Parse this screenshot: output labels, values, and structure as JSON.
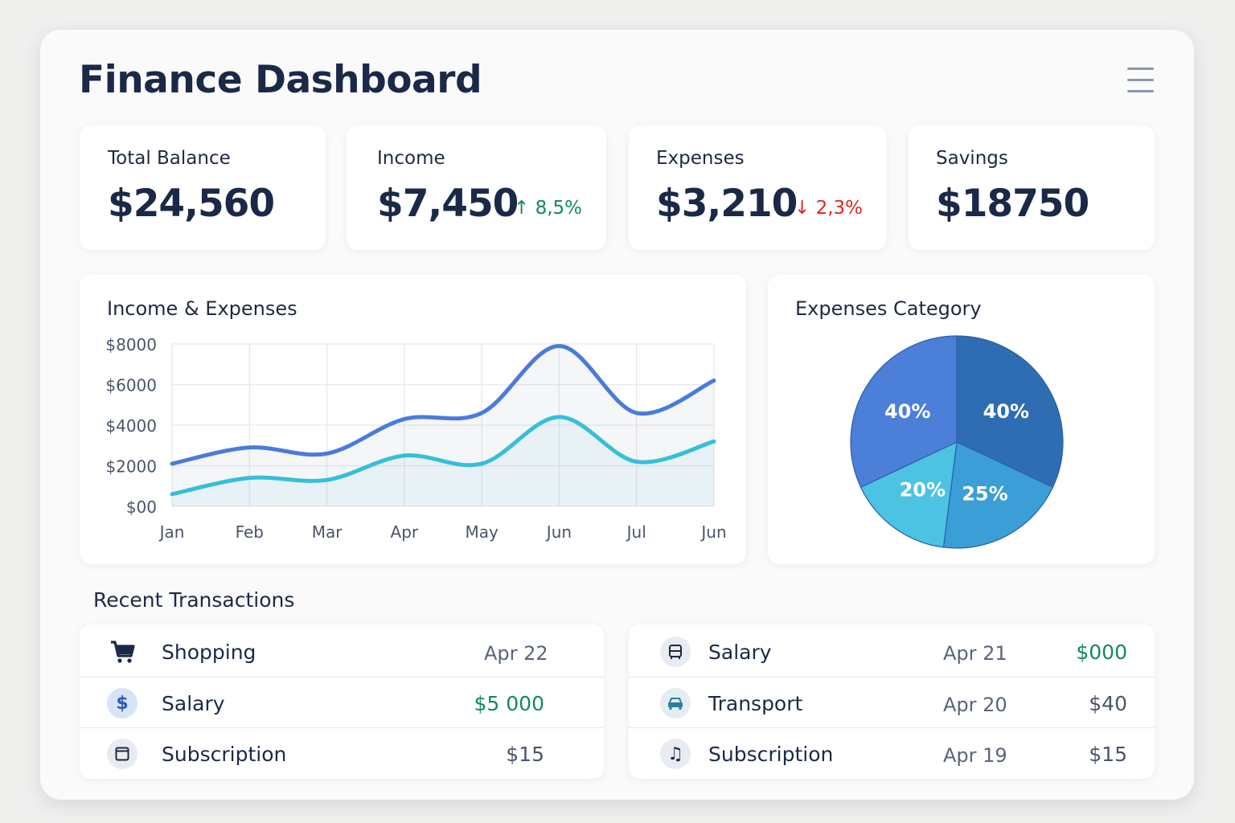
{
  "header": {
    "title": "Finance Dashboard",
    "menu_icon": "hamburger-menu-icon"
  },
  "stats": [
    {
      "label": "Total Balance",
      "value": "$24,560",
      "change": ""
    },
    {
      "label": "Income",
      "value": "$7,450",
      "change": "↑ 8,5%",
      "trend": "up"
    },
    {
      "label": "Expenses",
      "value": "$3,210",
      "change": "↓ 2,3%",
      "trend": "down"
    },
    {
      "label": "Savings",
      "value": "$18750",
      "change": ""
    }
  ],
  "colors": {
    "income_line": "#4a7bdc",
    "expense_line": "#35bfd8",
    "positive": "#138a5a",
    "negative": "#e02424",
    "pie": [
      "#2f6db3",
      "#3b9ed6",
      "#4cc3e3",
      "#4b7fd8"
    ]
  },
  "chart_data": [
    {
      "type": "line",
      "title": "Income & Expenses",
      "categories": [
        "Jan",
        "Feb",
        "Mar",
        "Apr",
        "May",
        "Jun",
        "Jul",
        "Jun"
      ],
      "yticks": [
        "$8000",
        "$6000",
        "$4000",
        "$2000",
        "$00"
      ],
      "ylim": [
        0,
        8000
      ],
      "grid": true,
      "series": [
        {
          "values": [
            2100,
            2900,
            2600,
            4300,
            4600,
            7900,
            4600,
            6200
          ]
        },
        {
          "values": [
            600,
            1400,
            1300,
            2500,
            2100,
            4400,
            2200,
            3200
          ]
        }
      ]
    },
    {
      "type": "pie",
      "title": "Expenses Category",
      "slices": [
        {
          "label": "40%",
          "value": 40
        },
        {
          "label": "25%",
          "value": 25
        },
        {
          "label": "20%",
          "value": 20
        },
        {
          "label": "40%",
          "value": 40
        }
      ]
    }
  ],
  "transactions": {
    "title": "Recent Transactions",
    "left": [
      {
        "icon": "shopping-cart-icon",
        "name": "Shopping",
        "date": "Apr 22",
        "amount": ""
      },
      {
        "icon": "dollar-icon",
        "name": "Salary",
        "date": "",
        "amount": "$5 000",
        "positive": true
      },
      {
        "icon": "subscription-card-icon",
        "name": "Subscription",
        "date": "",
        "amount": "$15"
      }
    ],
    "right": [
      {
        "icon": "bus-icon",
        "name": "Salary",
        "date": "Apr 21",
        "amount": "$000",
        "positive": true
      },
      {
        "icon": "car-icon",
        "name": "Transport",
        "date": "Apr 20",
        "amount": "$40"
      },
      {
        "icon": "music-note-icon",
        "name": "Subscription",
        "date": "Apr 19",
        "amount": "$15"
      }
    ]
  }
}
